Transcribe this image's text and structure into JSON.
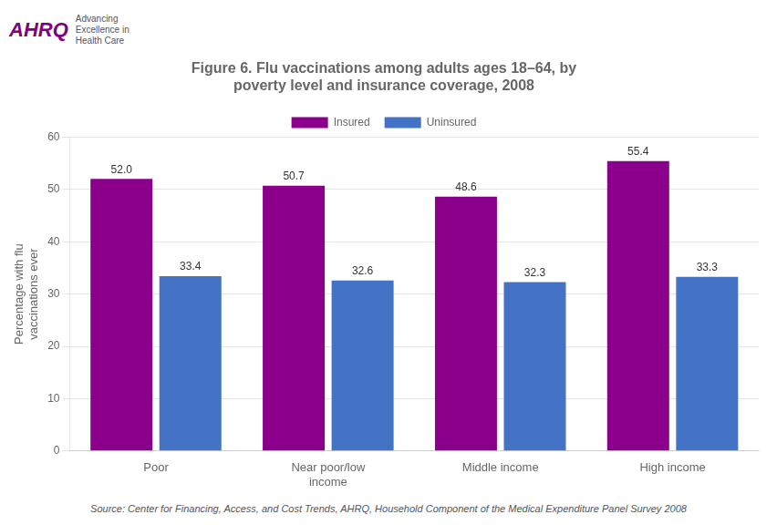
{
  "chart_data": {
    "type": "bar",
    "title": "Figure 6. Flu vaccinations among adults ages 18–64, by\npoverty level and insurance coverage, 2008",
    "categories": [
      "Poor",
      "Near poor/low\nincome",
      "Middle income",
      "High income"
    ],
    "series": [
      {
        "name": "Insured",
        "color": "#8B008B",
        "values": [
          52.0,
          50.7,
          48.6,
          55.4
        ],
        "value_labels": [
          "52.0",
          "50.7",
          "48.6",
          "55.4"
        ]
      },
      {
        "name": "Uninsured",
        "color": "#4472C4",
        "values": [
          33.4,
          32.6,
          32.3,
          33.3
        ],
        "value_labels": [
          "33.4",
          "32.6",
          "32.3",
          "33.3"
        ]
      }
    ],
    "y_label": "Percentage with flu\nvaccinations ever",
    "ylim": [
      0,
      60
    ],
    "yticks": [
      0,
      10,
      20,
      30,
      40,
      50,
      60
    ],
    "grid": true,
    "legend": "top",
    "data_labels": true,
    "annotations": [
      "AHRQ",
      "Advancing\nExcellence in\nHealth Care",
      "Source: Center for Financing, Access, and Cost Trends, AHRQ, Household Component of the Medical Expenditure Panel Survey 2008"
    ]
  }
}
